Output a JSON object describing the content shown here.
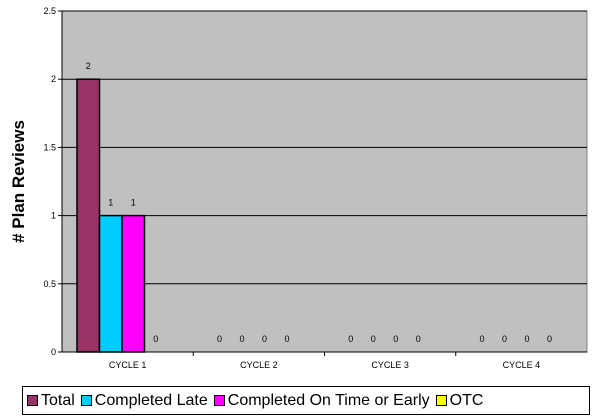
{
  "chart_data": {
    "type": "bar",
    "title": "",
    "xlabel": "",
    "ylabel": "# Plan Reviews",
    "ylim": [
      0,
      2.5
    ],
    "yticks": [
      0,
      0.5,
      1,
      1.5,
      2,
      2.5
    ],
    "grid": true,
    "legend_position": "bottom",
    "categories": [
      "CYCLE 1",
      "CYCLE 2",
      "CYCLE 3",
      "CYCLE 4"
    ],
    "series": [
      {
        "name": "Total",
        "color": "#993366",
        "values": [
          2,
          0,
          0,
          0
        ]
      },
      {
        "name": "Completed Late",
        "color": "#00ccff",
        "values": [
          1,
          0,
          0,
          0
        ]
      },
      {
        "name": "Completed On Time or Early",
        "color": "#ff00ff",
        "values": [
          1,
          0,
          0,
          0
        ]
      },
      {
        "name": "OTC",
        "color": "#ffff00",
        "values": [
          0,
          0,
          0,
          0
        ]
      }
    ],
    "plot_background": "#c0c0c0"
  }
}
